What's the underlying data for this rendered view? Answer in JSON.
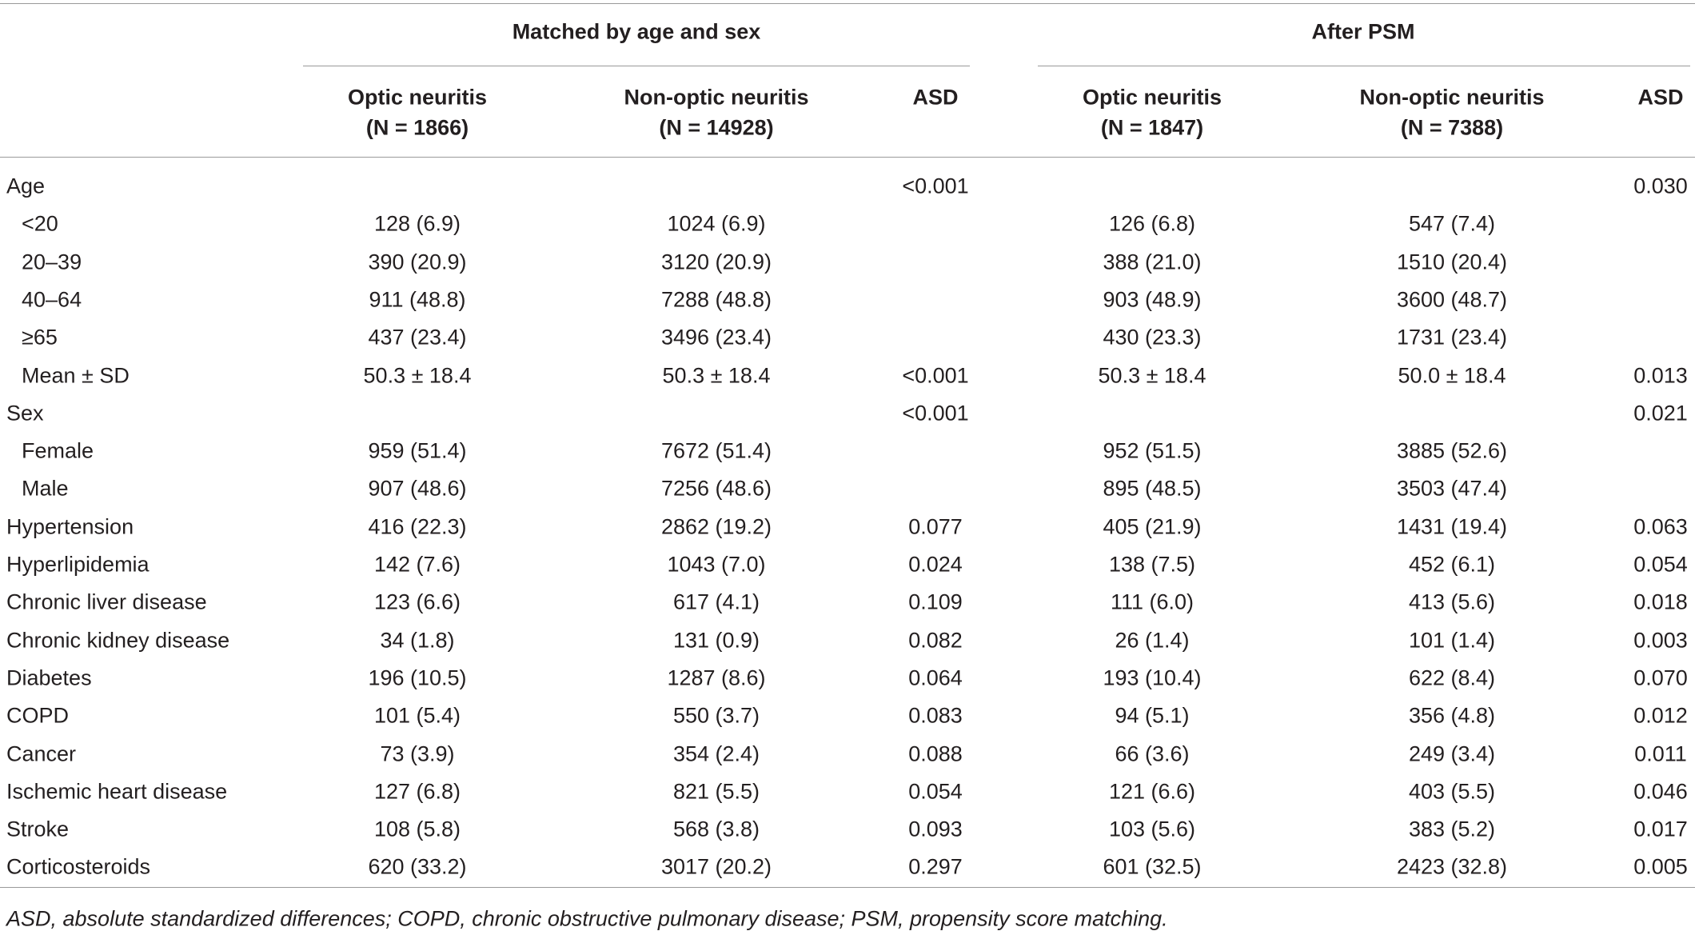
{
  "header": {
    "groups": [
      "Matched by age and sex",
      "After PSM"
    ],
    "columns": [
      {
        "name": "Optic neuritis",
        "n": "(N = 1866)"
      },
      {
        "name": "Non-optic neuritis",
        "n": "(N = 14928)"
      },
      {
        "name": "ASD"
      },
      {
        "name": "Optic neuritis",
        "n": "(N = 1847)"
      },
      {
        "name": "Non-optic neuritis",
        "n": "(N = 7388)"
      },
      {
        "name": "ASD"
      }
    ]
  },
  "table": {
    "rows": [
      {
        "cells": [
          "Age",
          null,
          null,
          "<0.001",
          null,
          null,
          "0.030"
        ],
        "items": [
          {
            "cells": [
              "<20",
              "128 (6.9)",
              "1024 (6.9)",
              null,
              "126 (6.8)",
              "547 (7.4)",
              null
            ]
          },
          {
            "cells": [
              "20–39",
              "390 (20.9)",
              "3120 (20.9)",
              null,
              "388 (21.0)",
              "1510 (20.4)",
              null
            ]
          },
          {
            "cells": [
              "40–64",
              "911 (48.8)",
              "7288 (48.8)",
              null,
              "903 (48.9)",
              "3600 (48.7)",
              null
            ]
          },
          {
            "cells": [
              "≥65",
              "437 (23.4)",
              "3496 (23.4)",
              null,
              "430 (23.3)",
              "1731 (23.4)",
              null
            ]
          },
          {
            "cells": [
              "Mean ± SD",
              "50.3 ± 18.4",
              "50.3 ± 18.4",
              "<0.001",
              "50.3 ± 18.4",
              "50.0 ± 18.4",
              "0.013"
            ]
          }
        ]
      },
      {
        "cells": [
          "Sex",
          null,
          null,
          "<0.001",
          null,
          null,
          "0.021"
        ],
        "items": [
          {
            "cells": [
              "Female",
              "959 (51.4)",
              "7672 (51.4)",
              null,
              "952 (51.5)",
              "3885 (52.6)",
              null
            ]
          },
          {
            "cells": [
              "Male",
              "907 (48.6)",
              "7256 (48.6)",
              null,
              "895 (48.5)",
              "3503 (47.4)",
              null
            ]
          }
        ]
      },
      {
        "cells": [
          "Hypertension",
          "416 (22.3)",
          "2862 (19.2)",
          "0.077",
          "405 (21.9)",
          "1431 (19.4)",
          "0.063"
        ]
      },
      {
        "cells": [
          "Hyperlipidemia",
          "142 (7.6)",
          "1043 (7.0)",
          "0.024",
          "138 (7.5)",
          "452 (6.1)",
          "0.054"
        ]
      },
      {
        "cells": [
          "Chronic liver disease",
          "123 (6.6)",
          "617 (4.1)",
          "0.109",
          "111 (6.0)",
          "413 (5.6)",
          "0.018"
        ]
      },
      {
        "cells": [
          "Chronic kidney disease",
          "34 (1.8)",
          "131 (0.9)",
          "0.082",
          "26 (1.4)",
          "101 (1.4)",
          "0.003"
        ]
      },
      {
        "cells": [
          "Diabetes",
          "196 (10.5)",
          "1287 (8.6)",
          "0.064",
          "193 (10.4)",
          "622 (8.4)",
          "0.070"
        ]
      },
      {
        "cells": [
          "COPD",
          "101 (5.4)",
          "550 (3.7)",
          "0.083",
          "94 (5.1)",
          "356 (4.8)",
          "0.012"
        ]
      },
      {
        "cells": [
          "Cancer",
          "73 (3.9)",
          "354 (2.4)",
          "0.088",
          "66 (3.6)",
          "249 (3.4)",
          "0.011"
        ]
      },
      {
        "cells": [
          "Ischemic heart disease",
          "127 (6.8)",
          "821 (5.5)",
          "0.054",
          "121 (6.6)",
          "403 (5.5)",
          "0.046"
        ]
      },
      {
        "cells": [
          "Stroke",
          "108 (5.8)",
          "568 (3.8)",
          "0.093",
          "103 (5.6)",
          "383 (5.2)",
          "0.017"
        ]
      },
      {
        "cells": [
          "Corticosteroids",
          "620 (33.2)",
          "3017 (20.2)",
          "0.297",
          "601 (32.5)",
          "2423 (32.8)",
          "0.005"
        ]
      }
    ]
  },
  "footnote": "ASD, absolute standardized differences; COPD, chronic obstructive pulmonary disease; PSM, propensity score matching."
}
